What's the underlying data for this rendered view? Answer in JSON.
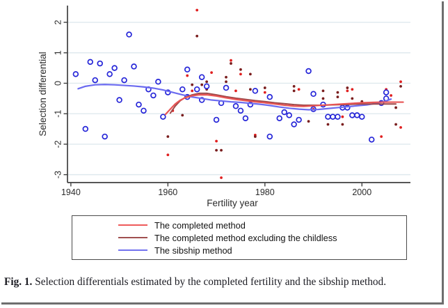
{
  "figure": {
    "caption_label": "Fig. 1.",
    "caption_text": "Selection differentials estimated by the completed fertility and the sibship method."
  },
  "axes": {
    "x_label": "Fertility year",
    "y_label": "Selection differential",
    "x_ticks": [
      1940,
      1960,
      1980,
      2000
    ],
    "y_ticks": [
      -3,
      -2,
      -1,
      0,
      1,
      2
    ],
    "xlim": [
      1939.3,
      2010
    ],
    "ylim": [
      -3.26,
      2.55
    ],
    "axis_color": "#3f3f3f",
    "grid_color": "#dfe9ee"
  },
  "legend": {
    "items": [
      {
        "label": "The completed method",
        "color": "#ee5a5a"
      },
      {
        "label": "The completed method excluding the childless",
        "color": "#a05050"
      },
      {
        "label": "The sibship method",
        "color": "#7272ee"
      }
    ]
  },
  "chart_data": {
    "type": "scatter",
    "title": "",
    "xlabel": "Fertility year",
    "ylabel": "Selection differential",
    "xlim": [
      1939.3,
      2010
    ],
    "ylim": [
      -3.26,
      2.55
    ],
    "grid": "horizontal-only",
    "legend_position": "bottom-box",
    "series": [
      {
        "name": "The completed method",
        "kind": "scatter",
        "marker": "dot",
        "color": "#e02020",
        "points": [
          [
            1960,
            -2.35
          ],
          [
            1961,
            -0.9
          ],
          [
            1964,
            0.25
          ],
          [
            1965,
            -0.25
          ],
          [
            1966,
            2.4
          ],
          [
            1969,
            0.35
          ],
          [
            1970,
            -1.9
          ],
          [
            1971,
            -3.1
          ],
          [
            1973,
            0.75
          ],
          [
            1974,
            -0.25
          ],
          [
            1975,
            0.3
          ],
          [
            1978,
            -1.7
          ],
          [
            1980,
            -0.3
          ],
          [
            1987,
            -0.2
          ],
          [
            1990,
            -0.85
          ],
          [
            1996,
            -1.1
          ],
          [
            1997,
            -0.25
          ],
          [
            1998,
            -0.2
          ],
          [
            2004,
            -1.75
          ],
          [
            2005,
            -0.2
          ],
          [
            2006,
            -0.4
          ],
          [
            2008,
            0.05
          ],
          [
            2008,
            -1.45
          ]
        ]
      },
      {
        "name": "The completed method excluding the childless",
        "kind": "scatter",
        "marker": "dot",
        "color": "#7a1e1e",
        "points": [
          [
            1960,
            -1.75
          ],
          [
            1963,
            -1.05
          ],
          [
            1965,
            -0.05
          ],
          [
            1966,
            1.55
          ],
          [
            1967,
            -0.05
          ],
          [
            1968,
            0.05
          ],
          [
            1968,
            -0.2
          ],
          [
            1970,
            -2.2
          ],
          [
            1971,
            -2.2
          ],
          [
            1972,
            0.2
          ],
          [
            1972,
            0.05
          ],
          [
            1973,
            0.65
          ],
          [
            1975,
            0.45
          ],
          [
            1977,
            -0.2
          ],
          [
            1977,
            0.3
          ],
          [
            1978,
            -1.75
          ],
          [
            1980,
            -0.15
          ],
          [
            1986,
            -0.1
          ],
          [
            1986,
            -0.25
          ],
          [
            1989,
            -1.25
          ],
          [
            1992,
            -0.25
          ],
          [
            1992,
            -0.5
          ],
          [
            1993,
            -1.35
          ],
          [
            1995,
            -0.3
          ],
          [
            1995,
            -0.45
          ],
          [
            1996,
            -1.35
          ],
          [
            1997,
            -0.15
          ],
          [
            1998,
            -0.5
          ],
          [
            2000,
            -0.6
          ],
          [
            2007,
            -0.8
          ],
          [
            2007,
            -1.35
          ],
          [
            2008,
            -0.1
          ]
        ]
      },
      {
        "name": "The sibship method",
        "kind": "scatter",
        "marker": "open-circle",
        "color": "#2525d8",
        "points": [
          [
            1941,
            0.3
          ],
          [
            1943,
            -1.5
          ],
          [
            1944,
            0.7
          ],
          [
            1945,
            0.1
          ],
          [
            1946,
            0.65
          ],
          [
            1947,
            -1.75
          ],
          [
            1948,
            0.3
          ],
          [
            1949,
            0.5
          ],
          [
            1950,
            -0.55
          ],
          [
            1951,
            0.1
          ],
          [
            1952,
            1.6
          ],
          [
            1953,
            0.55
          ],
          [
            1954,
            -0.7
          ],
          [
            1955,
            -0.9
          ],
          [
            1956,
            -0.2
          ],
          [
            1957,
            -0.4
          ],
          [
            1958,
            0.05
          ],
          [
            1959,
            -1.1
          ],
          [
            1960,
            -0.3
          ],
          [
            1963,
            -0.2
          ],
          [
            1964,
            0.45
          ],
          [
            1964,
            -0.45
          ],
          [
            1966,
            -0.2
          ],
          [
            1967,
            0.2
          ],
          [
            1967,
            -0.55
          ],
          [
            1968,
            -0.1
          ],
          [
            1970,
            -1.2
          ],
          [
            1971,
            -0.65
          ],
          [
            1972,
            -0.15
          ],
          [
            1974,
            -0.75
          ],
          [
            1975,
            -0.9
          ],
          [
            1976,
            -1.15
          ],
          [
            1977,
            -0.7
          ],
          [
            1978,
            -0.25
          ],
          [
            1981,
            -0.45
          ],
          [
            1981,
            -1.75
          ],
          [
            1983,
            -1.15
          ],
          [
            1984,
            -0.95
          ],
          [
            1985,
            -1.05
          ],
          [
            1986,
            -1.35
          ],
          [
            1987,
            -1.2
          ],
          [
            1989,
            0.4
          ],
          [
            1990,
            -0.35
          ],
          [
            1990,
            -0.85
          ],
          [
            1992,
            -0.7
          ],
          [
            1993,
            -1.1
          ],
          [
            1994,
            -1.1
          ],
          [
            1995,
            -1.1
          ],
          [
            1996,
            -0.8
          ],
          [
            1997,
            -0.8
          ],
          [
            1998,
            -1.05
          ],
          [
            1999,
            -1.05
          ],
          [
            2000,
            -1.1
          ],
          [
            2002,
            -1.85
          ],
          [
            2004,
            -0.65
          ],
          [
            2005,
            -0.3
          ],
          [
            2005,
            -0.5
          ]
        ]
      },
      {
        "name": "The completed method (smooth fit)",
        "kind": "line",
        "color": "#e85555",
        "width": 2.2,
        "points": [
          [
            1959.5,
            -1.02
          ],
          [
            1960.5,
            -0.85
          ],
          [
            1961.5,
            -0.68
          ],
          [
            1962.5,
            -0.56
          ],
          [
            1963.5,
            -0.48
          ],
          [
            1965,
            -0.41
          ],
          [
            1966.5,
            -0.38
          ],
          [
            1968,
            -0.38
          ],
          [
            1970,
            -0.42
          ],
          [
            1972,
            -0.48
          ],
          [
            1974,
            -0.53
          ],
          [
            1976,
            -0.57
          ],
          [
            1978,
            -0.61
          ],
          [
            1980,
            -0.64
          ],
          [
            1982,
            -0.68
          ],
          [
            1984,
            -0.72
          ],
          [
            1986,
            -0.75
          ],
          [
            1988,
            -0.76
          ],
          [
            1990,
            -0.74
          ],
          [
            1992,
            -0.72
          ],
          [
            1994,
            -0.7
          ],
          [
            1996,
            -0.68
          ],
          [
            1998,
            -0.66
          ],
          [
            2000,
            -0.64
          ],
          [
            2002,
            -0.63
          ],
          [
            2004,
            -0.62
          ],
          [
            2006,
            -0.62
          ],
          [
            2008.5,
            -0.62
          ]
        ]
      },
      {
        "name": "The completed method excluding the childless (smooth fit)",
        "kind": "line",
        "color": "#9e4848",
        "width": 2.0,
        "points": [
          [
            1960.5,
            -0.98
          ],
          [
            1961.5,
            -0.75
          ],
          [
            1962.5,
            -0.58
          ],
          [
            1963.5,
            -0.47
          ],
          [
            1965,
            -0.38
          ],
          [
            1966.5,
            -0.33
          ],
          [
            1968,
            -0.33
          ],
          [
            1970,
            -0.38
          ],
          [
            1972,
            -0.44
          ],
          [
            1974,
            -0.49
          ],
          [
            1976,
            -0.53
          ],
          [
            1978,
            -0.57
          ],
          [
            1980,
            -0.6
          ],
          [
            1982,
            -0.64
          ],
          [
            1984,
            -0.67
          ],
          [
            1986,
            -0.7
          ],
          [
            1988,
            -0.72
          ],
          [
            1990,
            -0.72
          ],
          [
            1992,
            -0.72
          ],
          [
            1994,
            -0.71
          ],
          [
            1996,
            -0.7
          ],
          [
            1998,
            -0.69
          ],
          [
            2000,
            -0.68
          ],
          [
            2002,
            -0.68
          ],
          [
            2004,
            -0.68
          ],
          [
            2007,
            -0.68
          ]
        ]
      },
      {
        "name": "The sibship method (smooth fit)",
        "kind": "line",
        "color": "#6b6bf0",
        "width": 2.2,
        "points": [
          [
            1941.5,
            -0.18
          ],
          [
            1943,
            -0.1
          ],
          [
            1945,
            -0.05
          ],
          [
            1947,
            -0.04
          ],
          [
            1949,
            -0.05
          ],
          [
            1951,
            -0.07
          ],
          [
            1953,
            -0.09
          ],
          [
            1955,
            -0.12
          ],
          [
            1957,
            -0.16
          ],
          [
            1959,
            -0.22
          ],
          [
            1961,
            -0.3
          ],
          [
            1963,
            -0.38
          ],
          [
            1965,
            -0.45
          ],
          [
            1967,
            -0.5
          ],
          [
            1969,
            -0.55
          ],
          [
            1971,
            -0.58
          ],
          [
            1973,
            -0.61
          ],
          [
            1975,
            -0.63
          ],
          [
            1977,
            -0.66
          ],
          [
            1979,
            -0.69
          ],
          [
            1981,
            -0.73
          ],
          [
            1983,
            -0.78
          ],
          [
            1985,
            -0.82
          ],
          [
            1987,
            -0.85
          ],
          [
            1989,
            -0.87
          ],
          [
            1991,
            -0.86
          ],
          [
            1993,
            -0.83
          ],
          [
            1995,
            -0.8
          ],
          [
            1997,
            -0.77
          ],
          [
            1999,
            -0.74
          ],
          [
            2001,
            -0.71
          ],
          [
            2003,
            -0.66
          ],
          [
            2005,
            -0.58
          ],
          [
            2006,
            -0.52
          ]
        ]
      }
    ]
  }
}
